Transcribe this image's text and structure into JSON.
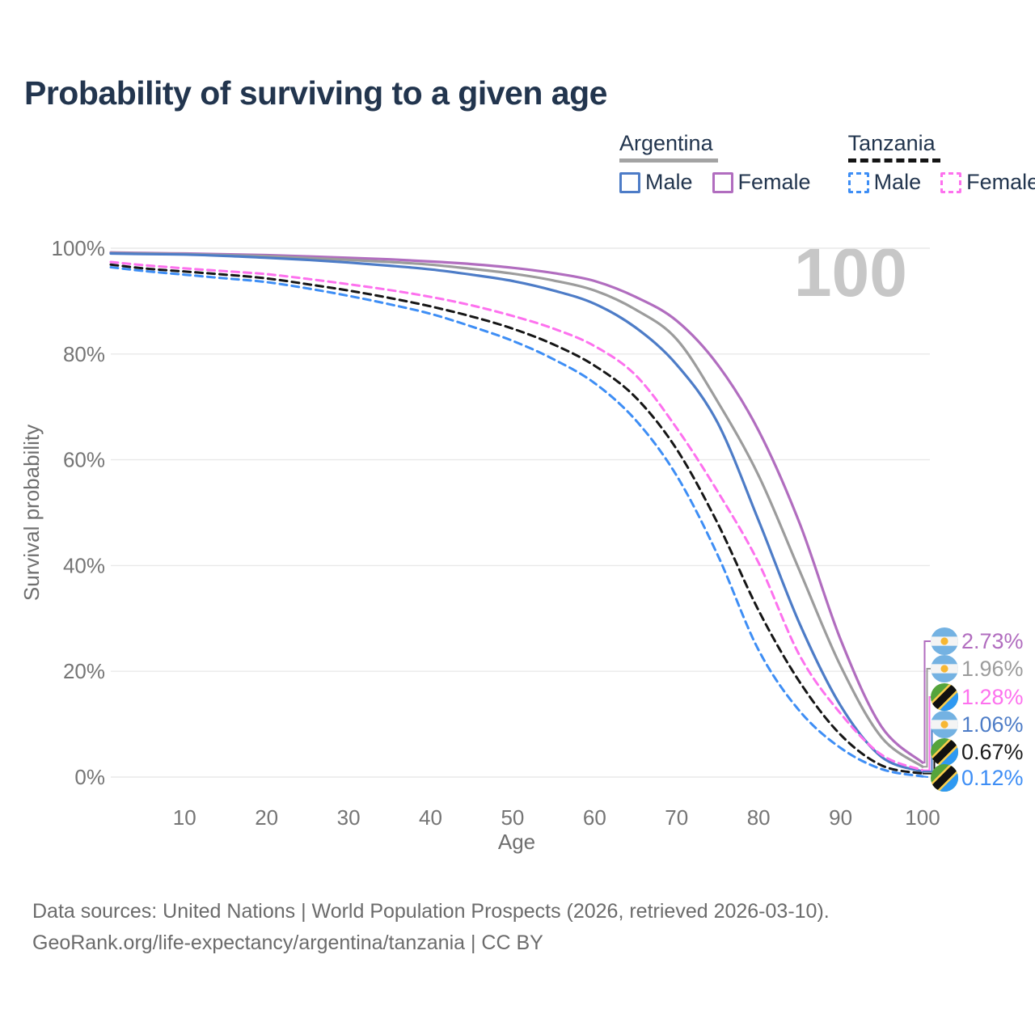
{
  "title": "Probability of surviving to a given age",
  "watermark": "100",
  "legend": {
    "groups": [
      {
        "name": "Argentina",
        "style": "solid",
        "items": [
          {
            "label": "Male"
          },
          {
            "label": "Female"
          }
        ]
      },
      {
        "name": "Tanzania",
        "style": "dashed",
        "items": [
          {
            "label": "Male"
          },
          {
            "label": "Female"
          }
        ]
      }
    ]
  },
  "axes": {
    "x_label": "Age",
    "y_label": "Survival probability",
    "y_ticks": [
      {
        "label": "0%",
        "value": 0
      },
      {
        "label": "20%",
        "value": 20
      },
      {
        "label": "40%",
        "value": 40
      },
      {
        "label": "60%",
        "value": 60
      },
      {
        "label": "80%",
        "value": 80
      },
      {
        "label": "100%",
        "value": 100
      }
    ],
    "x_ticks": [
      {
        "label": "10",
        "value": 10
      },
      {
        "label": "20",
        "value": 20
      },
      {
        "label": "30",
        "value": 30
      },
      {
        "label": "40",
        "value": 40
      },
      {
        "label": "50",
        "value": 50
      },
      {
        "label": "60",
        "value": 60
      },
      {
        "label": "70",
        "value": 70
      },
      {
        "label": "80",
        "value": 80
      },
      {
        "label": "90",
        "value": 90
      },
      {
        "label": "100",
        "value": 100
      }
    ]
  },
  "footer": {
    "line1": "Data sources: United Nations | World Population Prospects (2026, retrieved 2026-03-10).",
    "line2": "GeoRank.org/life-expectancy/argentina/tanzania | CC BY"
  },
  "chart_data": {
    "type": "line",
    "title": "Probability of surviving to a given age",
    "xlabel": "Age",
    "ylabel": "Survival probability",
    "xlim": [
      1,
      100
    ],
    "ylim": [
      0,
      100
    ],
    "grid": true,
    "age_counter": "100",
    "x": [
      1,
      5,
      10,
      15,
      20,
      25,
      30,
      35,
      40,
      45,
      50,
      55,
      60,
      65,
      70,
      75,
      80,
      85,
      90,
      95,
      100
    ],
    "series": [
      {
        "name": "Argentina Female",
        "country": "argentina",
        "sex": "female",
        "style": "solid",
        "color": "#b16dbf",
        "end_label": "2.73%",
        "end_value": 2.73,
        "values": [
          99.2,
          99.1,
          99.0,
          98.85,
          98.7,
          98.45,
          98.2,
          97.9,
          97.5,
          97.0,
          96.3,
          95.3,
          93.8,
          90.8,
          86.3,
          78.0,
          65.5,
          48.0,
          26.0,
          9.5,
          2.73
        ]
      },
      {
        "name": "Argentina Both sexes",
        "country": "argentina",
        "sex": "both",
        "style": "solid",
        "color": "#9c9c9c",
        "end_label": "1.96%",
        "end_value": 1.96,
        "values": [
          99.1,
          99.0,
          98.9,
          98.7,
          98.5,
          98.15,
          97.8,
          97.4,
          96.9,
          96.1,
          95.2,
          93.9,
          92.0,
          88.4,
          82.8,
          71.0,
          57.0,
          39.0,
          21.0,
          7.5,
          1.96
        ]
      },
      {
        "name": "Argentina Male",
        "country": "argentina",
        "sex": "male",
        "style": "solid",
        "color": "#4d7cc7",
        "end_label": "1.06%",
        "end_value": 1.06,
        "values": [
          99.0,
          98.9,
          98.8,
          98.55,
          98.2,
          97.8,
          97.3,
          96.7,
          96.0,
          95.0,
          93.8,
          92.0,
          89.5,
          85.0,
          78.0,
          67.0,
          48.5,
          29.0,
          13.5,
          3.8,
          1.06
        ]
      },
      {
        "name": "Tanzania Male",
        "country": "tanzania",
        "sex": "male",
        "style": "dashed",
        "color": "#3e8ef5",
        "end_label": "0.12%",
        "end_value": 0.12,
        "values": [
          96.4,
          95.7,
          95.0,
          94.3,
          93.6,
          92.4,
          91.0,
          89.4,
          87.6,
          85.2,
          82.5,
          79.0,
          74.5,
          67.5,
          57.0,
          42.0,
          24.0,
          12.5,
          5.5,
          1.5,
          0.12
        ]
      },
      {
        "name": "Tanzania Both sexes",
        "country": "tanzania",
        "sex": "both",
        "style": "dashed",
        "color": "#161616",
        "end_label": "0.67%",
        "end_value": 0.67,
        "values": [
          96.9,
          96.2,
          95.6,
          95.0,
          94.3,
          93.2,
          92.0,
          90.6,
          89.0,
          87.1,
          84.8,
          81.8,
          77.8,
          71.8,
          62.0,
          48.0,
          31.5,
          18.0,
          8.0,
          2.2,
          0.67
        ]
      },
      {
        "name": "Tanzania Female",
        "country": "tanzania",
        "sex": "female",
        "style": "dashed",
        "color": "#fd71ee",
        "end_label": "1.28%",
        "end_value": 1.28,
        "values": [
          97.4,
          96.8,
          96.2,
          95.65,
          95.1,
          94.2,
          93.2,
          92.1,
          90.8,
          89.2,
          87.2,
          84.8,
          81.5,
          76.0,
          66.0,
          54.0,
          40.5,
          23.0,
          12.0,
          4.2,
          1.28
        ]
      }
    ],
    "end_label_order": [
      "Argentina Female",
      "Argentina Both sexes",
      "Tanzania Female",
      "Argentina Male",
      "Tanzania Both sexes",
      "Tanzania Male"
    ]
  }
}
